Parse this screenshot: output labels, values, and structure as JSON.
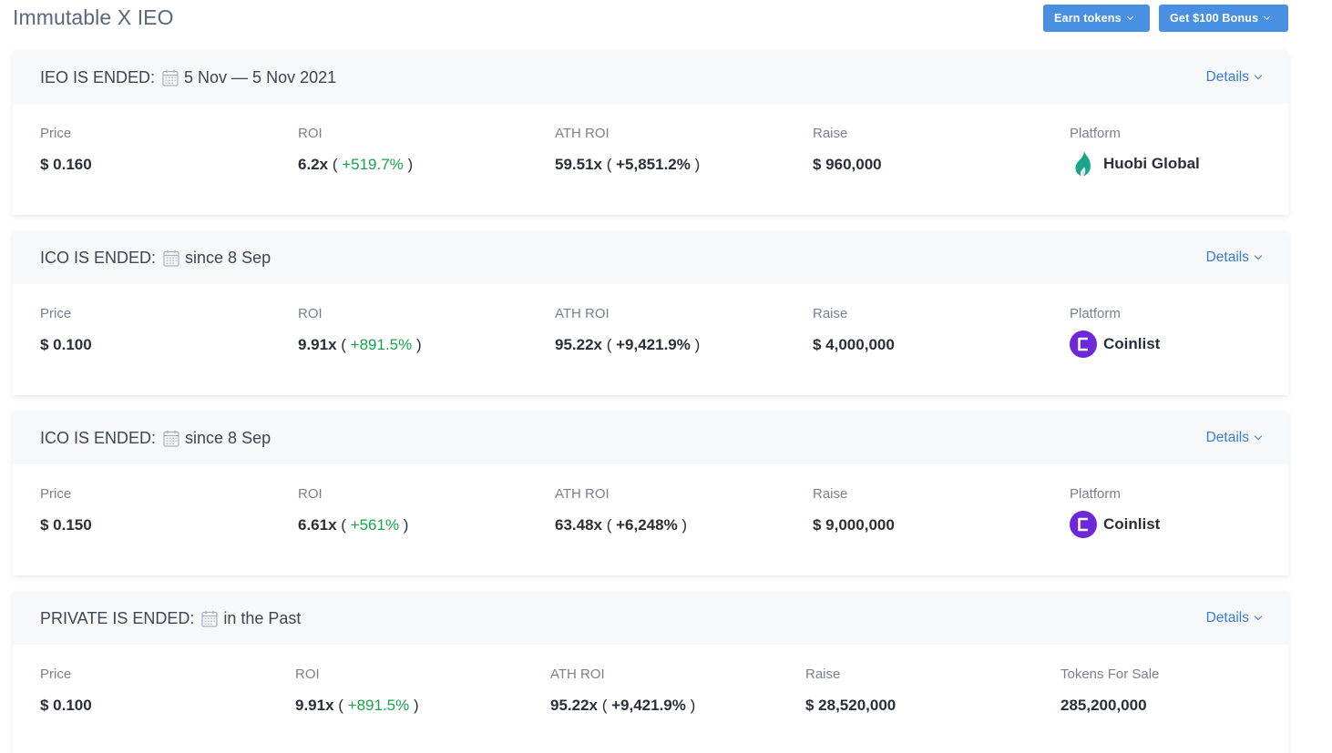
{
  "header": {
    "title": "Immutable X IEO",
    "earn_button": "Earn tokens",
    "bonus_button": "Get $100 Bonus"
  },
  "details_label": "Details",
  "rounds": [
    {
      "title": "IEO IS ENDED:",
      "date": "5 Nov — 5 Nov 2021",
      "labels": [
        "Price",
        "ROI",
        "ATH ROI",
        "Raise",
        "Platform"
      ],
      "price": "$ 0.160",
      "roi_x": "6.2x",
      "roi_pct": "+519.7%",
      "ath_x": "59.51x",
      "ath_pct": "+5,851.2%",
      "raise": "$ 960,000",
      "platform": "Huobi Global",
      "platform_icon": "huobi-logo-icon"
    },
    {
      "title": "ICO IS ENDED:",
      "date": "since 8 Sep",
      "labels": [
        "Price",
        "ROI",
        "ATH ROI",
        "Raise",
        "Platform"
      ],
      "price": "$ 0.100",
      "roi_x": "9.91x",
      "roi_pct": "+891.5%",
      "ath_x": "95.22x",
      "ath_pct": "+9,421.9%",
      "raise": "$ 4,000,000",
      "platform": "Coinlist",
      "platform_icon": "coinlist-logo-icon"
    },
    {
      "title": "ICO IS ENDED:",
      "date": "since 8 Sep",
      "labels": [
        "Price",
        "ROI",
        "ATH ROI",
        "Raise",
        "Platform"
      ],
      "price": "$ 0.150",
      "roi_x": "6.61x",
      "roi_pct": "+561%",
      "ath_x": "63.48x",
      "ath_pct": "+6,248%",
      "raise": "$ 9,000,000",
      "platform": "Coinlist",
      "platform_icon": "coinlist-logo-icon"
    },
    {
      "title": "PRIVATE IS ENDED:",
      "date": "in the Past",
      "labels": [
        "Price",
        "ROI",
        "ATH ROI",
        "Raise",
        "Tokens For Sale"
      ],
      "price": "$ 0.100",
      "roi_x": "9.91x",
      "roi_pct": "+891.5%",
      "ath_x": "95.22x",
      "ath_pct": "+9,421.9%",
      "raise": "$ 28,520,000",
      "tokens_for_sale": "285,200,000"
    }
  ],
  "colors": {
    "button": "#4a90e2",
    "link": "#3a7bd5",
    "positive": "#16a34a",
    "coinlist": "#6d28d9",
    "huobi": "#1aa58c"
  }
}
